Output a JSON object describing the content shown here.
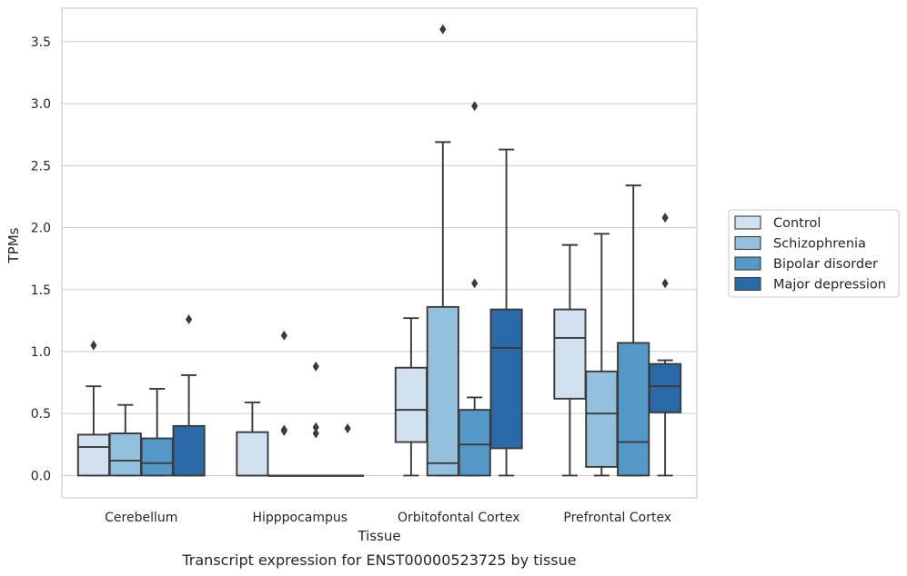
{
  "chart_data": {
    "type": "box",
    "title": "",
    "caption": "Transcript expression for ENST00000523725 by tissue",
    "xlabel": "Tissue",
    "ylabel": "TPMs",
    "ylim": [
      -0.18,
      3.77
    ],
    "yticks": [
      0.0,
      0.5,
      1.0,
      1.5,
      2.0,
      2.5,
      3.0,
      3.5
    ],
    "ytick_labels": [
      "0.0",
      "0.5",
      "1.0",
      "1.5",
      "2.0",
      "2.5",
      "3.0",
      "3.5"
    ],
    "grid": "horizontal",
    "legend_position": "right",
    "categories": [
      "Cerebellum",
      "Hipppocampus",
      "Orbitofontal Cortex",
      "Prefrontal Cortex"
    ],
    "series": [
      {
        "name": "Control",
        "color": "#d1e1ef",
        "boxes": [
          {
            "q1": 0.0,
            "median": 0.23,
            "q3": 0.33,
            "whisker_low": 0.0,
            "whisker_high": 0.72,
            "outliers": [
              1.05
            ]
          },
          {
            "q1": 0.0,
            "median": 0.0,
            "q3": 0.35,
            "whisker_low": 0.0,
            "whisker_high": 0.59,
            "outliers": []
          },
          {
            "q1": 0.27,
            "median": 0.53,
            "q3": 0.87,
            "whisker_low": 0.0,
            "whisker_high": 1.27,
            "outliers": []
          },
          {
            "q1": 0.62,
            "median": 1.11,
            "q3": 1.34,
            "whisker_low": 0.0,
            "whisker_high": 1.86,
            "outliers": []
          }
        ]
      },
      {
        "name": "Schizophrenia",
        "color": "#92c0dd",
        "boxes": [
          {
            "q1": 0.0,
            "median": 0.12,
            "q3": 0.34,
            "whisker_low": 0.0,
            "whisker_high": 0.57,
            "outliers": []
          },
          {
            "q1": 0.0,
            "median": 0.0,
            "q3": 0.0,
            "whisker_low": 0.0,
            "whisker_high": 0.0,
            "outliers": [
              0.37,
              0.36,
              1.13
            ]
          },
          {
            "q1": 0.0,
            "median": 0.1,
            "q3": 1.36,
            "whisker_low": 0.0,
            "whisker_high": 2.69,
            "outliers": [
              3.6
            ]
          },
          {
            "q1": 0.07,
            "median": 0.5,
            "q3": 0.84,
            "whisker_low": 0.0,
            "whisker_high": 1.95,
            "outliers": []
          }
        ]
      },
      {
        "name": "Bipolar disorder",
        "color": "#5498c8",
        "boxes": [
          {
            "q1": 0.0,
            "median": 0.1,
            "q3": 0.3,
            "whisker_low": 0.0,
            "whisker_high": 0.7,
            "outliers": []
          },
          {
            "q1": 0.0,
            "median": 0.0,
            "q3": 0.0,
            "whisker_low": 0.0,
            "whisker_high": 0.0,
            "outliers": [
              0.88,
              0.39,
              0.34
            ]
          },
          {
            "q1": 0.0,
            "median": 0.25,
            "q3": 0.53,
            "whisker_low": 0.0,
            "whisker_high": 0.63,
            "outliers": [
              1.55,
              2.98
            ]
          },
          {
            "q1": 0.0,
            "median": 0.27,
            "q3": 1.07,
            "whisker_low": 0.0,
            "whisker_high": 2.34,
            "outliers": []
          }
        ]
      },
      {
        "name": "Major depression",
        "color": "#2b6aa8",
        "boxes": [
          {
            "q1": 0.0,
            "median": 0.0,
            "q3": 0.4,
            "whisker_low": 0.0,
            "whisker_high": 0.81,
            "outliers": [
              1.26
            ]
          },
          {
            "q1": 0.0,
            "median": 0.0,
            "q3": 0.0,
            "whisker_low": 0.0,
            "whisker_high": 0.0,
            "outliers": [
              0.38
            ]
          },
          {
            "q1": 0.22,
            "median": 1.03,
            "q3": 1.34,
            "whisker_low": 0.0,
            "whisker_high": 2.63,
            "outliers": []
          },
          {
            "q1": 0.51,
            "median": 0.72,
            "q3": 0.9,
            "whisker_low": 0.0,
            "whisker_high": 0.93,
            "outliers": [
              1.55,
              2.08
            ]
          }
        ]
      }
    ]
  }
}
